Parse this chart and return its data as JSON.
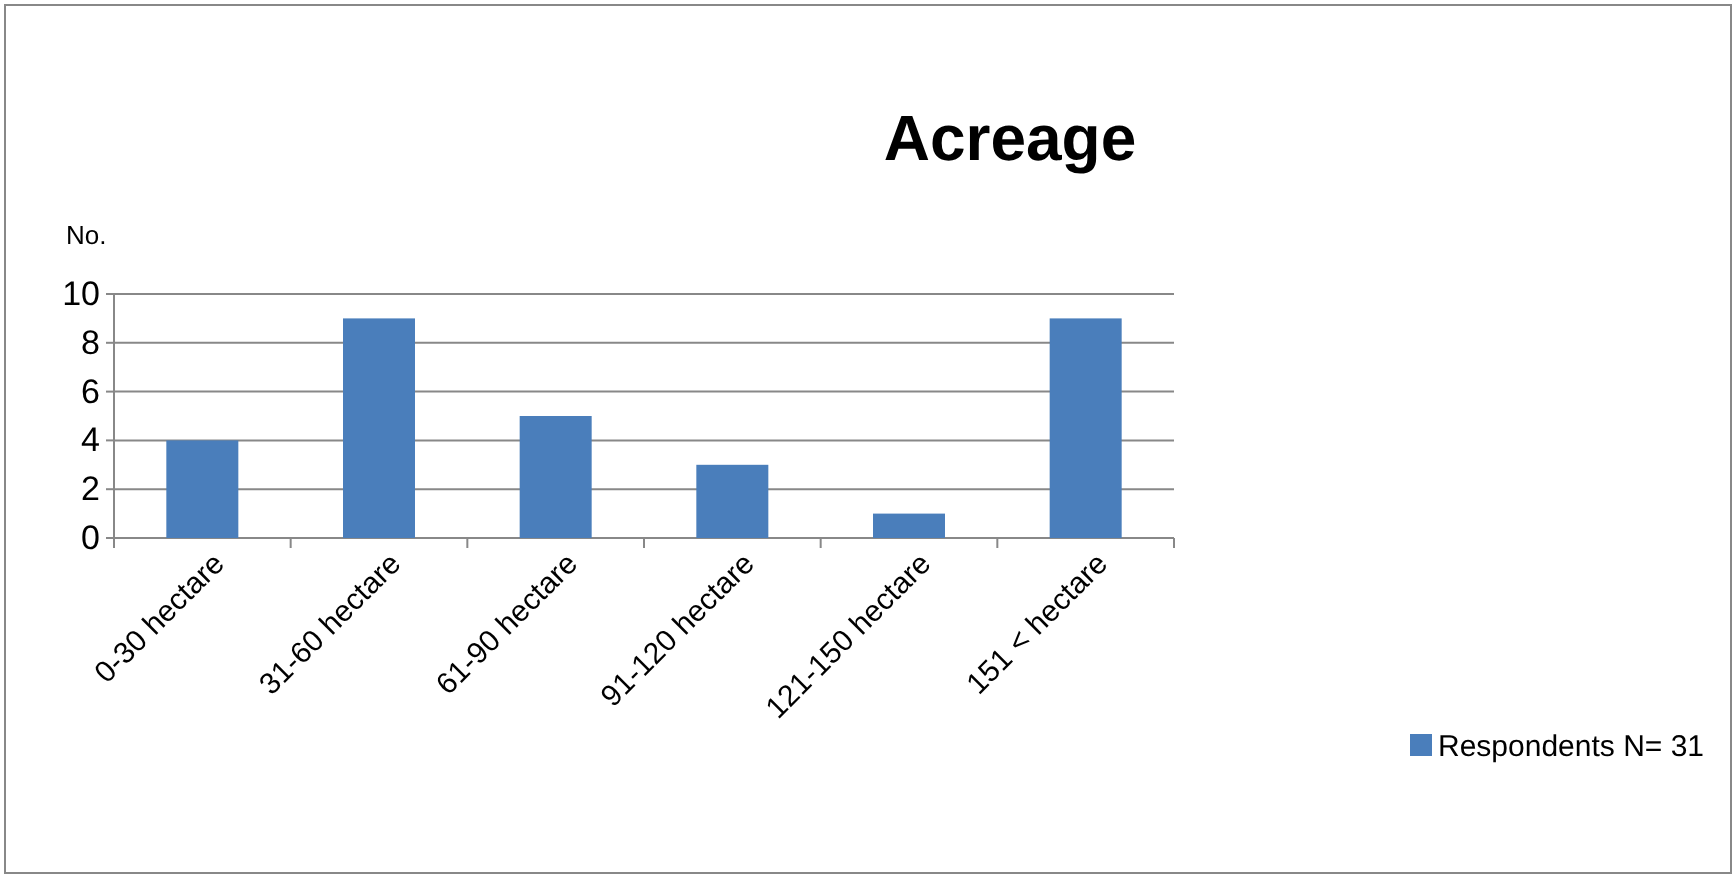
{
  "chart_data": {
    "type": "bar",
    "title": "Acreage",
    "ylabel": "No.",
    "categories": [
      "0-30 hectare",
      "31-60 hectare",
      "61-90 hectare",
      "91-120 hectare",
      "121-150 hectare",
      "151 < hectare"
    ],
    "series": [
      {
        "name": "Respondents N= 31",
        "color": "#4a7ebb",
        "values": [
          4,
          9,
          5,
          3,
          1,
          9
        ]
      }
    ],
    "ylim": [
      0,
      10
    ],
    "yticks": [
      0,
      2,
      4,
      6,
      8,
      10
    ],
    "grid": "y",
    "legend": "bottom right"
  }
}
